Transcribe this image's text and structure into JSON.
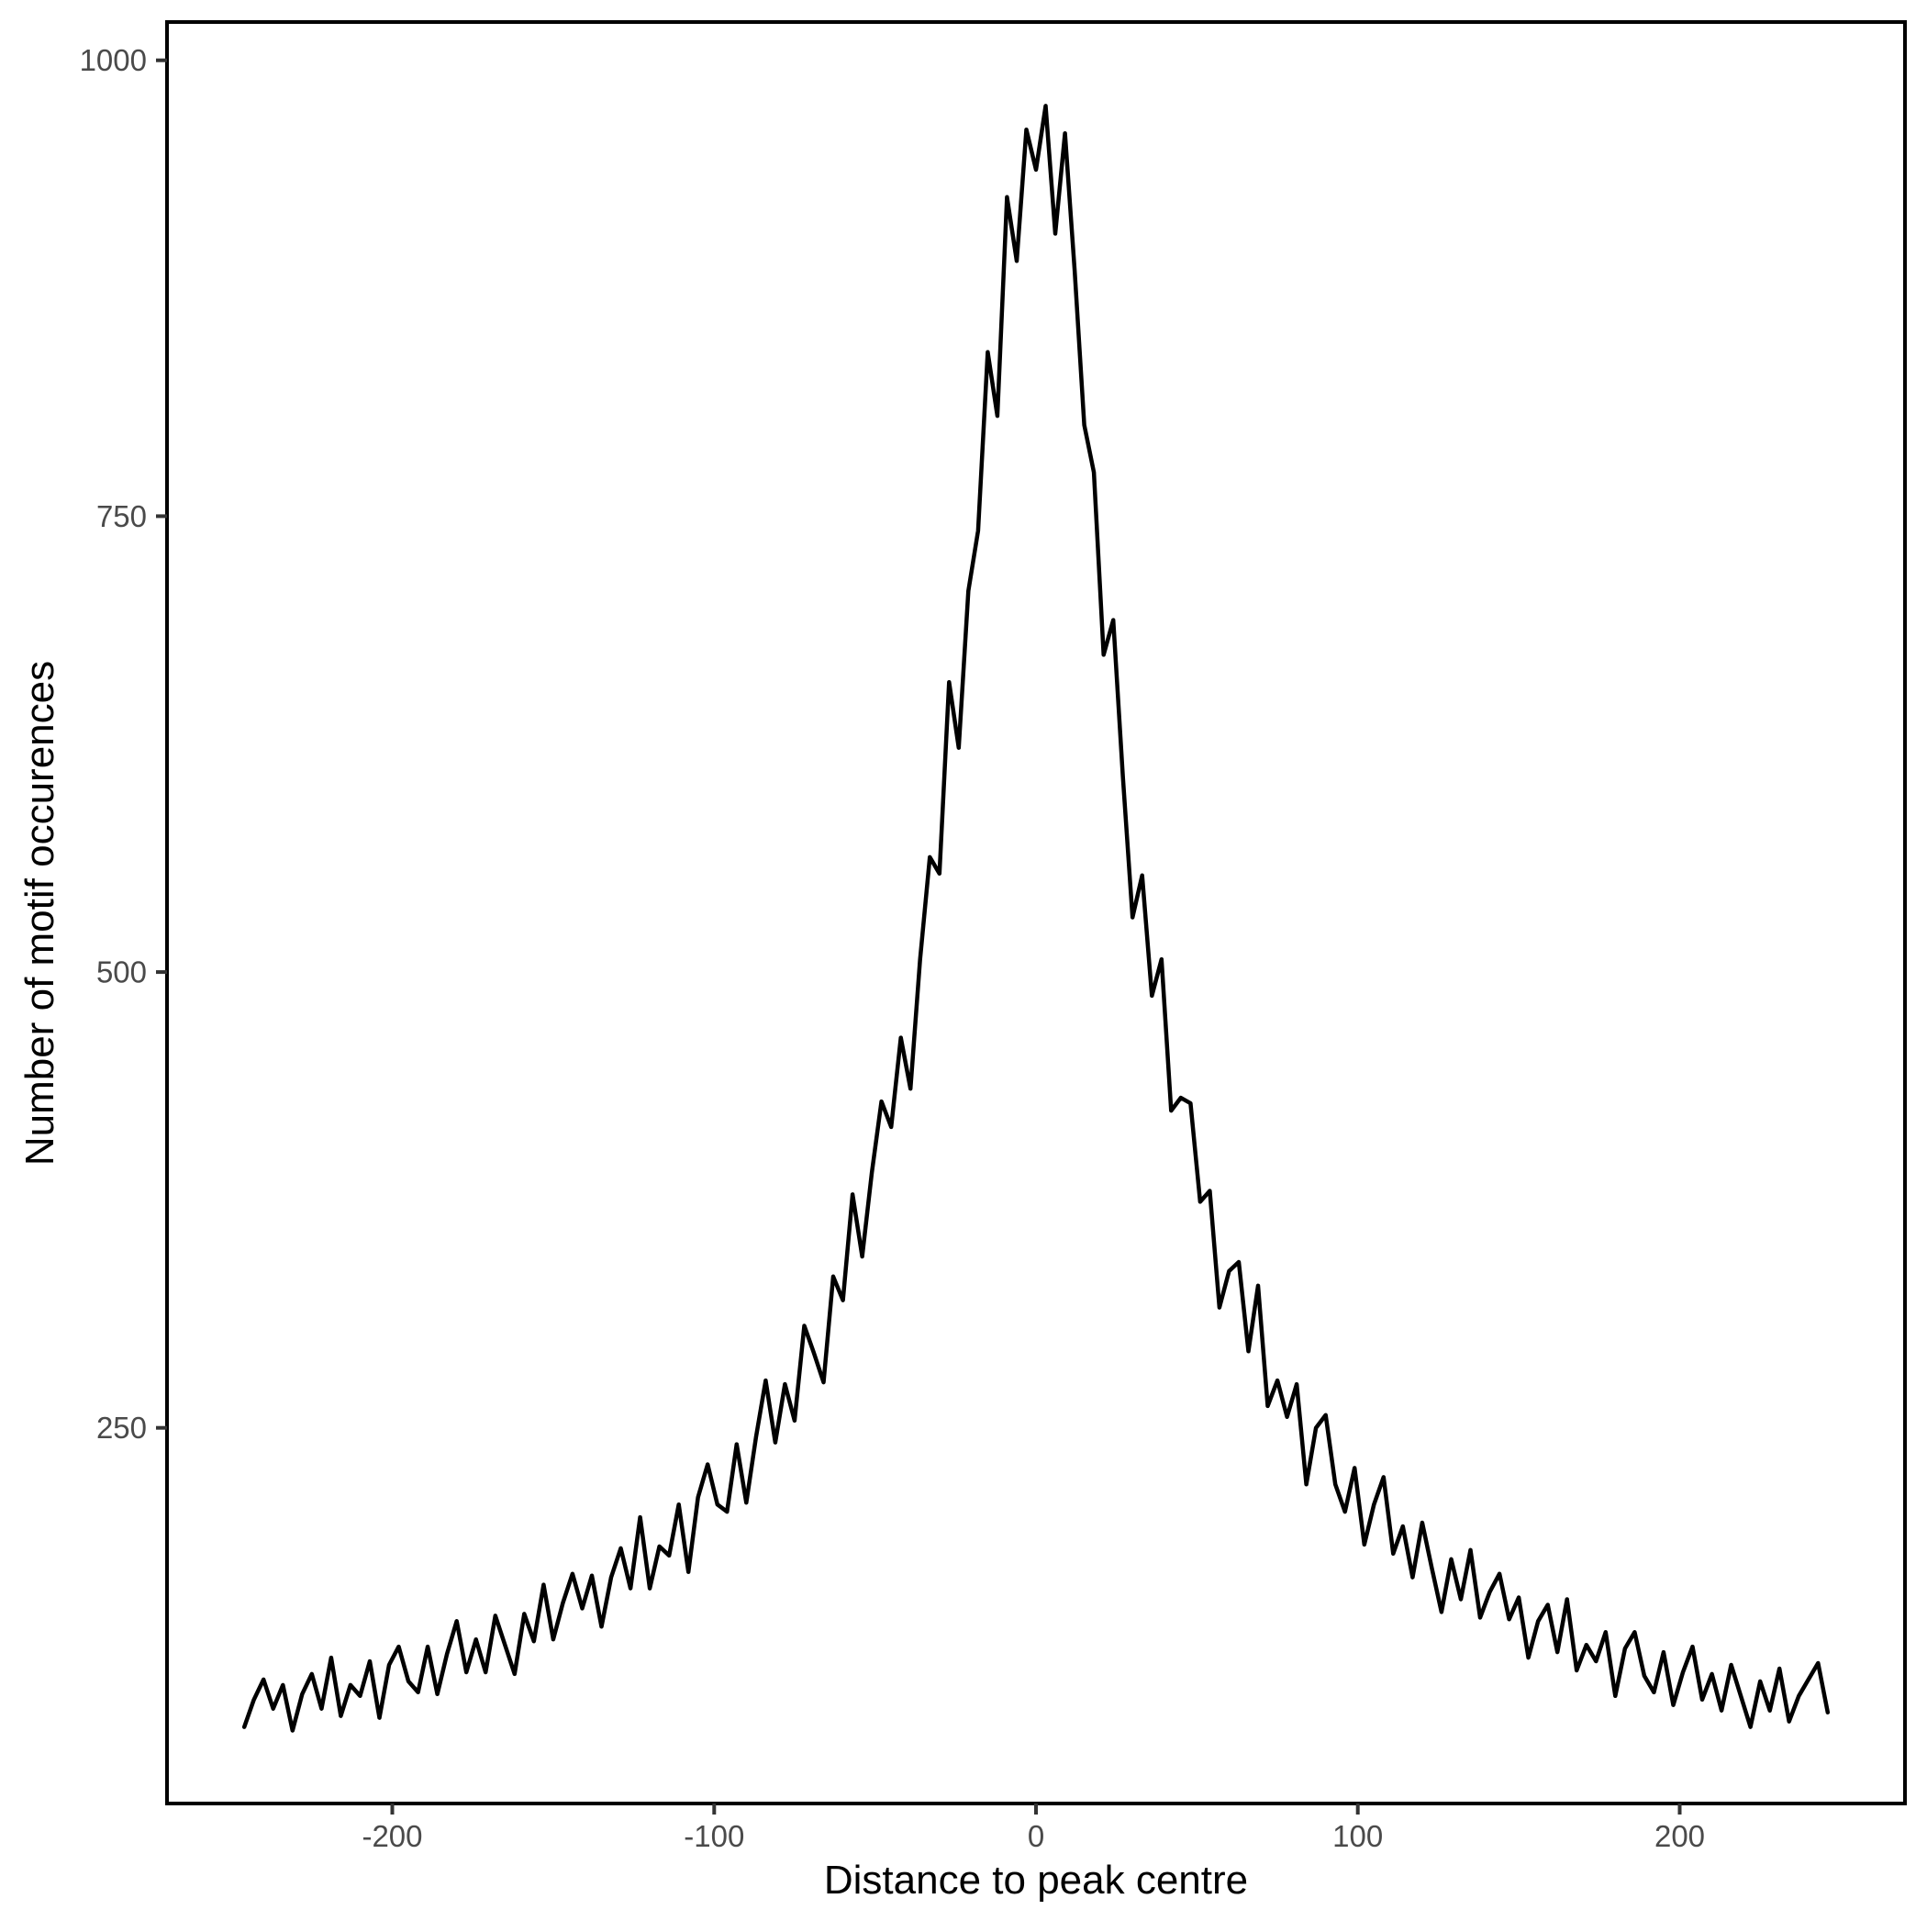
{
  "figure": {
    "background": "#ffffff"
  },
  "chart_data": {
    "type": "line",
    "title": "",
    "xlabel": "Distance to peak centre",
    "ylabel": "Number of motif occurences",
    "x_ticks": [
      -200,
      -100,
      0,
      100,
      200
    ],
    "y_ticks": [
      250,
      500,
      750,
      1000
    ],
    "xlim": [
      -270,
      270
    ],
    "ylim": [
      44,
      1021
    ],
    "grid": false,
    "legend": "none",
    "line_color": "#000000",
    "line_width": 4.5,
    "panel_border_color": "#000000",
    "tick_color": "#333333",
    "tick_label_color": "#4a4a4a",
    "axis_title_color": "#000000",
    "series": [
      {
        "name": "Number of motif occurences",
        "x": [
          -246,
          -243,
          -240,
          -237,
          -234,
          -231,
          -228,
          -225,
          -222,
          -219,
          -216,
          -213,
          -210,
          -207,
          -204,
          -201,
          -198,
          -195,
          -192,
          -189,
          -186,
          -183,
          -180,
          -177,
          -174,
          -171,
          -168,
          -165,
          -162,
          -159,
          -156,
          -153,
          -150,
          -147,
          -144,
          -141,
          -138,
          -135,
          -132,
          -129,
          -126,
          -123,
          -120,
          -117,
          -114,
          -111,
          -108,
          -105,
          -102,
          -99,
          -96,
          -93,
          -90,
          -87,
          -84,
          -81,
          -78,
          -75,
          -72,
          -69,
          -66,
          -63,
          -60,
          -57,
          -54,
          -51,
          -48,
          -45,
          -42,
          -39,
          -36,
          -33,
          -30,
          -27,
          -24,
          -21,
          -18,
          -15,
          -12,
          -9,
          -6,
          -3,
          0,
          3,
          6,
          9,
          12,
          15,
          18,
          21,
          24,
          27,
          30,
          33,
          36,
          39,
          42,
          45,
          48,
          51,
          54,
          57,
          60,
          63,
          66,
          69,
          72,
          75,
          78,
          81,
          84,
          87,
          90,
          93,
          96,
          99,
          102,
          105,
          108,
          111,
          114,
          117,
          120,
          123,
          126,
          129,
          132,
          135,
          138,
          141,
          144,
          147,
          150,
          153,
          156,
          159,
          162,
          165,
          168,
          171,
          174,
          177,
          180,
          183,
          186,
          189,
          192,
          195,
          198,
          201,
          204,
          207,
          210,
          213,
          216,
          219,
          222,
          225,
          228,
          231,
          234,
          237,
          240,
          243,
          246
        ],
        "values": [
          86,
          101,
          112,
          96,
          109,
          84,
          104,
          115,
          96,
          124,
          92,
          109,
          103,
          122,
          91,
          120,
          130,
          111,
          105,
          130,
          104,
          126,
          144,
          116,
          134,
          116,
          147,
          131,
          115,
          148,
          133,
          164,
          134,
          154,
          170,
          151,
          169,
          141,
          168,
          184,
          162,
          201,
          162,
          185,
          180,
          208,
          171,
          212,
          230,
          208,
          204,
          241,
          209,
          245,
          276,
          242,
          274,
          254,
          306,
          291,
          275,
          333,
          320,
          378,
          344,
          390,
          429,
          415,
          464,
          436,
          507,
          563,
          554,
          659,
          623,
          709,
          742,
          840,
          805,
          925,
          890,
          962,
          940,
          975,
          905,
          960,
          885,
          800,
          774,
          674,
          693,
          607,
          530,
          553,
          487,
          507,
          424,
          431,
          428,
          374,
          380,
          316,
          336,
          341,
          292,
          328,
          262,
          276,
          256,
          274,
          219,
          250,
          257,
          219,
          204,
          228,
          186,
          208,
          223,
          181,
          196,
          168,
          198,
          173,
          149,
          178,
          156,
          183,
          146,
          160,
          170,
          145,
          157,
          124,
          144,
          153,
          127,
          156,
          117,
          131,
          122,
          138,
          103,
          129,
          138,
          114,
          105,
          127,
          98,
          116,
          130,
          101,
          115,
          95,
          120,
          103,
          86,
          111,
          95,
          118,
          89,
          103,
          112,
          121,
          94
        ]
      }
    ]
  }
}
